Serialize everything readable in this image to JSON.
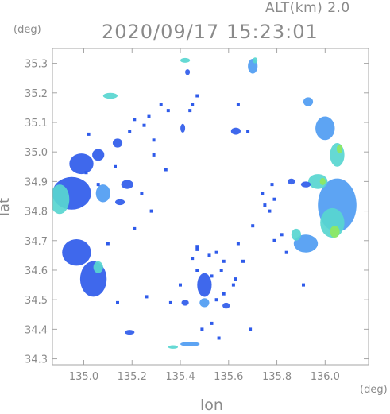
{
  "altitude_label": "ALT(km)  2.0",
  "timestamp": "2020/09/17 15:23:01",
  "chart_data": {
    "type": "heatmap",
    "title": "2020/09/17 15:23:01",
    "subtitle": "ALT(km)  2.0",
    "xlabel": "lon",
    "ylabel": "lat",
    "x_unit": "(deg)",
    "y_unit": "(deg)",
    "xlim": [
      134.87,
      136.18
    ],
    "ylim": [
      34.28,
      35.35
    ],
    "x_ticks": [
      135.0,
      135.2,
      135.4,
      135.6,
      135.8,
      136.0
    ],
    "x_tick_labels": [
      "135.0",
      "135.2",
      "135.4",
      "135.6",
      "135.8",
      "136.0"
    ],
    "y_ticks": [
      34.3,
      34.4,
      34.5,
      34.6,
      34.7,
      34.8,
      34.9,
      35.0,
      35.1,
      35.2,
      35.3
    ],
    "y_tick_labels": [
      "34.3",
      "34.4",
      "34.5",
      "34.6",
      "34.7",
      "34.8",
      "34.9",
      "35.0",
      "35.1",
      "35.2",
      "35.3"
    ],
    "grid": false,
    "colors": {
      "low": "#2f5bea",
      "mid": "#4f9cf2",
      "high": "#58d6d0",
      "peak": "#8fe860",
      "axis": "#a6a6a6",
      "text": "#8a8a8a"
    },
    "echo_cells": [
      {
        "lon": 134.95,
        "lat": 34.86,
        "rx": 0.08,
        "ry": 0.055,
        "level": 0.35
      },
      {
        "lon": 134.9,
        "lat": 34.84,
        "rx": 0.04,
        "ry": 0.05,
        "level": 0.55
      },
      {
        "lon": 134.99,
        "lat": 34.96,
        "rx": 0.05,
        "ry": 0.035,
        "level": 0.3
      },
      {
        "lon": 135.08,
        "lat": 34.86,
        "rx": 0.03,
        "ry": 0.03,
        "level": 0.4
      },
      {
        "lon": 135.06,
        "lat": 34.99,
        "rx": 0.025,
        "ry": 0.02,
        "level": 0.3
      },
      {
        "lon": 134.97,
        "lat": 34.66,
        "rx": 0.06,
        "ry": 0.045,
        "level": 0.35
      },
      {
        "lon": 135.04,
        "lat": 34.57,
        "rx": 0.055,
        "ry": 0.06,
        "level": 0.35
      },
      {
        "lon": 135.06,
        "lat": 34.61,
        "rx": 0.02,
        "ry": 0.02,
        "level": 0.6
      },
      {
        "lon": 135.14,
        "lat": 35.03,
        "rx": 0.02,
        "ry": 0.015,
        "level": 0.3
      },
      {
        "lon": 135.18,
        "lat": 34.89,
        "rx": 0.025,
        "ry": 0.015,
        "level": 0.3
      },
      {
        "lon": 135.15,
        "lat": 34.83,
        "rx": 0.02,
        "ry": 0.01,
        "level": 0.3
      },
      {
        "lon": 135.11,
        "lat": 35.19,
        "rx": 0.03,
        "ry": 0.01,
        "level": 0.55
      },
      {
        "lon": 135.42,
        "lat": 35.31,
        "rx": 0.02,
        "ry": 0.008,
        "level": 0.6
      },
      {
        "lon": 135.43,
        "lat": 35.27,
        "rx": 0.01,
        "ry": 0.01,
        "level": 0.3
      },
      {
        "lon": 135.7,
        "lat": 35.29,
        "rx": 0.02,
        "ry": 0.025,
        "level": 0.45
      },
      {
        "lon": 135.71,
        "lat": 35.31,
        "rx": 0.01,
        "ry": 0.01,
        "level": 0.65
      },
      {
        "lon": 135.63,
        "lat": 35.07,
        "rx": 0.02,
        "ry": 0.012,
        "level": 0.3
      },
      {
        "lon": 135.41,
        "lat": 35.08,
        "rx": 0.01,
        "ry": 0.015,
        "level": 0.3
      },
      {
        "lon": 135.93,
        "lat": 35.17,
        "rx": 0.02,
        "ry": 0.015,
        "level": 0.4
      },
      {
        "lon": 136.0,
        "lat": 35.08,
        "rx": 0.04,
        "ry": 0.04,
        "level": 0.4
      },
      {
        "lon": 136.05,
        "lat": 34.99,
        "rx": 0.03,
        "ry": 0.04,
        "level": 0.6
      },
      {
        "lon": 136.06,
        "lat": 35.01,
        "rx": 0.012,
        "ry": 0.015,
        "level": 0.85
      },
      {
        "lon": 136.05,
        "lat": 34.82,
        "rx": 0.08,
        "ry": 0.09,
        "level": 0.45
      },
      {
        "lon": 136.03,
        "lat": 34.76,
        "rx": 0.05,
        "ry": 0.05,
        "level": 0.65
      },
      {
        "lon": 136.04,
        "lat": 34.73,
        "rx": 0.02,
        "ry": 0.02,
        "level": 0.9
      },
      {
        "lon": 135.97,
        "lat": 34.9,
        "rx": 0.04,
        "ry": 0.025,
        "level": 0.55
      },
      {
        "lon": 135.99,
        "lat": 34.9,
        "rx": 0.012,
        "ry": 0.012,
        "level": 0.85
      },
      {
        "lon": 135.92,
        "lat": 34.69,
        "rx": 0.05,
        "ry": 0.03,
        "level": 0.45
      },
      {
        "lon": 135.88,
        "lat": 34.72,
        "rx": 0.02,
        "ry": 0.02,
        "level": 0.75
      },
      {
        "lon": 135.92,
        "lat": 34.89,
        "rx": 0.02,
        "ry": 0.01,
        "level": 0.35
      },
      {
        "lon": 135.86,
        "lat": 34.9,
        "rx": 0.015,
        "ry": 0.01,
        "level": 0.35
      },
      {
        "lon": 135.5,
        "lat": 34.55,
        "rx": 0.03,
        "ry": 0.04,
        "level": 0.35
      },
      {
        "lon": 135.5,
        "lat": 34.49,
        "rx": 0.02,
        "ry": 0.015,
        "level": 0.4
      },
      {
        "lon": 135.42,
        "lat": 34.49,
        "rx": 0.015,
        "ry": 0.01,
        "level": 0.3
      },
      {
        "lon": 135.59,
        "lat": 34.48,
        "rx": 0.015,
        "ry": 0.01,
        "level": 0.3
      },
      {
        "lon": 135.19,
        "lat": 34.39,
        "rx": 0.02,
        "ry": 0.008,
        "level": 0.35
      },
      {
        "lon": 135.37,
        "lat": 34.34,
        "rx": 0.02,
        "ry": 0.006,
        "level": 0.6
      },
      {
        "lon": 135.44,
        "lat": 34.35,
        "rx": 0.04,
        "ry": 0.008,
        "level": 0.5
      }
    ],
    "speckles": [
      [
        135.32,
        35.16
      ],
      [
        135.35,
        35.14
      ],
      [
        135.21,
        35.11
      ],
      [
        135.25,
        35.09
      ],
      [
        135.47,
        35.19
      ],
      [
        135.44,
        35.14
      ],
      [
        135.29,
        34.99
      ],
      [
        135.34,
        34.94
      ],
      [
        135.19,
        35.07
      ],
      [
        135.29,
        35.04
      ],
      [
        135.64,
        35.16
      ],
      [
        135.68,
        35.07
      ],
      [
        135.47,
        34.67
      ],
      [
        135.52,
        34.65
      ],
      [
        135.55,
        34.66
      ],
      [
        135.57,
        34.6
      ],
      [
        135.53,
        34.58
      ],
      [
        135.47,
        34.6
      ],
      [
        135.45,
        34.64
      ],
      [
        135.58,
        34.63
      ],
      [
        135.62,
        34.55
      ],
      [
        135.55,
        34.5
      ],
      [
        135.58,
        34.52
      ],
      [
        135.63,
        34.57
      ],
      [
        135.4,
        34.55
      ],
      [
        135.36,
        34.49
      ],
      [
        135.26,
        34.51
      ],
      [
        135.14,
        34.49
      ],
      [
        135.1,
        34.69
      ],
      [
        135.28,
        34.8
      ],
      [
        135.21,
        34.74
      ],
      [
        135.78,
        34.89
      ],
      [
        135.74,
        34.86
      ],
      [
        135.79,
        34.84
      ],
      [
        135.82,
        34.72
      ],
      [
        135.79,
        34.7
      ],
      [
        135.84,
        34.66
      ],
      [
        135.77,
        34.8
      ],
      [
        135.75,
        34.82
      ],
      [
        135.91,
        34.55
      ],
      [
        135.69,
        34.4
      ],
      [
        135.53,
        34.42
      ],
      [
        135.56,
        34.37
      ],
      [
        135.49,
        34.4
      ],
      [
        135.02,
        35.06
      ],
      [
        135.13,
        34.95
      ],
      [
        135.01,
        34.93
      ],
      [
        135.06,
        34.89
      ],
      [
        135.64,
        34.69
      ],
      [
        135.66,
        34.63
      ],
      [
        135.47,
        34.68
      ],
      [
        135.7,
        34.75
      ],
      [
        135.24,
        34.86
      ],
      [
        135.45,
        35.16
      ],
      [
        135.27,
        35.12
      ]
    ]
  }
}
